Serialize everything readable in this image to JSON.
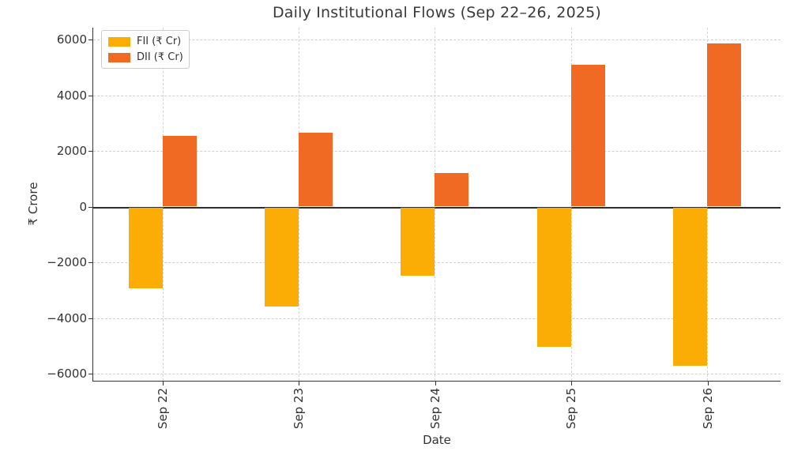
{
  "title": "Daily Institutional Flows (Sep 22–26, 2025)",
  "colors": {
    "fii": "#FBAC05",
    "dii": "#F16A24",
    "grid": "#CFCFCF",
    "axis": "#333333",
    "zero_line": "#2E2E2E",
    "text": "#333333"
  },
  "legend": {
    "items": [
      {
        "label": "FII (₹ Cr)",
        "series_key": "fii"
      },
      {
        "label": "DII (₹ Cr)",
        "series_key": "dii"
      }
    ],
    "position": "upper left"
  },
  "chart_data": {
    "type": "bar",
    "title": "Daily Institutional Flows (Sep 22–26, 2025)",
    "xlabel": "Date",
    "ylabel": "₹ Crore",
    "categories": [
      "Sep 22",
      "Sep 23",
      "Sep 24",
      "Sep 25",
      "Sep 26"
    ],
    "series": [
      {
        "name": "FII (₹ Cr)",
        "color": "#FBAC05",
        "values": [
          -2900,
          -3550,
          -2450,
          -5000,
          -5700
        ]
      },
      {
        "name": "DII (₹ Cr)",
        "color": "#F16A24",
        "values": [
          2550,
          2650,
          1200,
          5100,
          5850
        ]
      }
    ],
    "ylim": [
      -6000,
      6000
    ],
    "yticks": [
      -6000,
      -4000,
      -2000,
      0,
      2000,
      4000,
      6000
    ],
    "grid": true,
    "grid_style": "dashed",
    "zero_line": true,
    "legend_position": "upper left",
    "xtick_rotation": 90
  }
}
